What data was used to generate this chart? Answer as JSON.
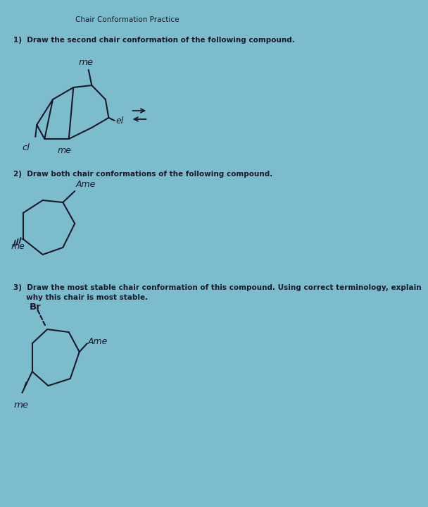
{
  "bg_color": "#7dbccc",
  "title": "Chair Conformation Practice",
  "q1": "1)  Draw the second chair conformation of the following compound.",
  "q2": "2)  Draw both chair conformations of the following compound.",
  "q3a": "3)  Draw the most stable chair conformation of this compound. Using correct terminology, explain",
  "q3b": "     why this chair is most stable.",
  "text_color": "#1a1a2e",
  "line_color": "#1a1a2e"
}
